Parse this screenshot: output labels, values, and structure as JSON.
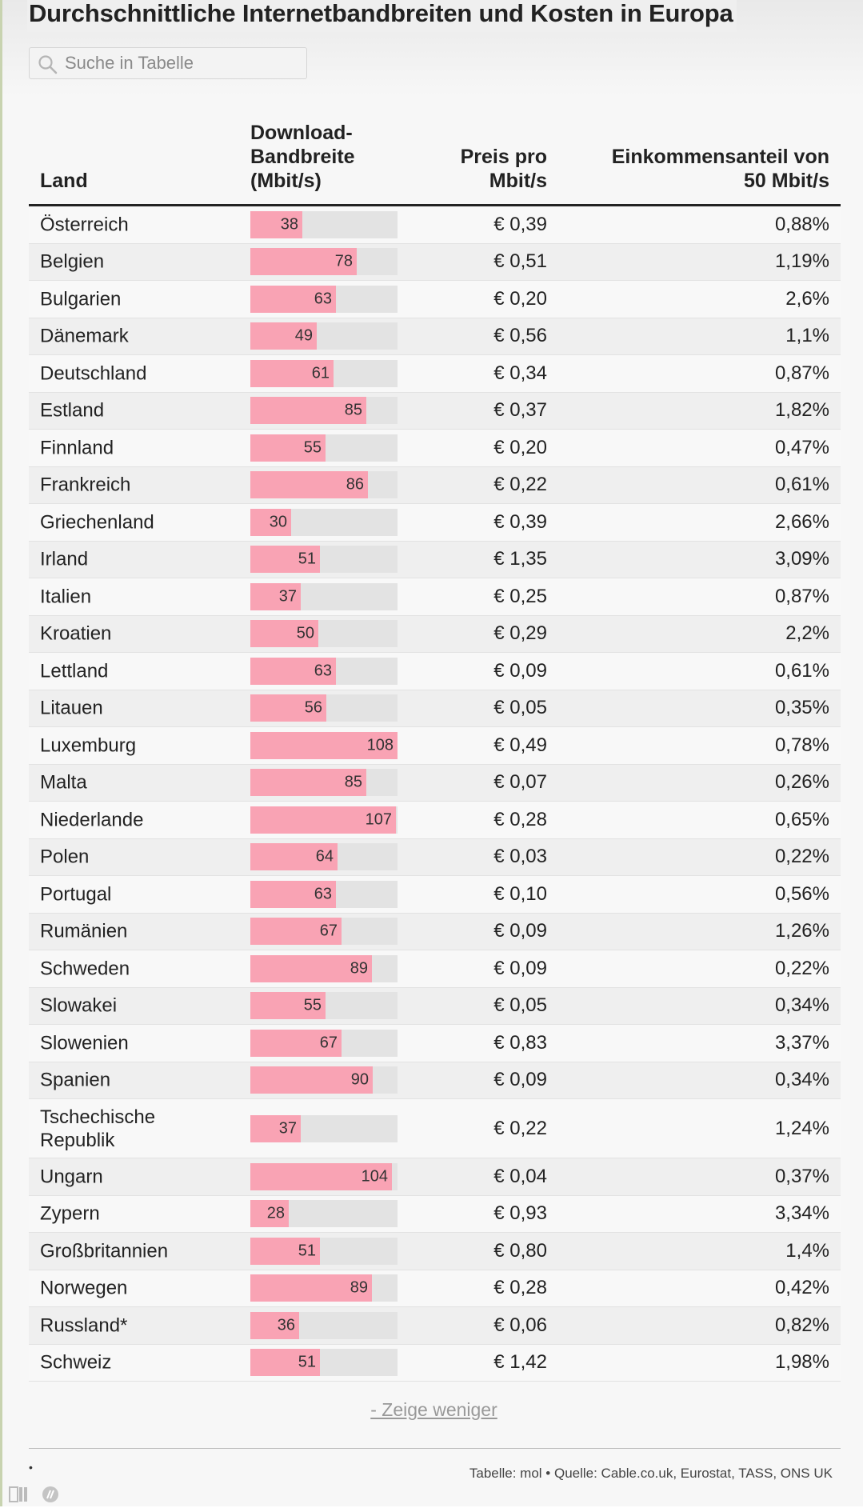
{
  "title": "Durchschnittliche Internetbandbreiten und Kosten in Europa",
  "search": {
    "placeholder": "Suche in Tabelle"
  },
  "headers": {
    "land": "Land",
    "bandwidth_l1": "Download-",
    "bandwidth_l2": "Bandbreite",
    "bandwidth_l3": "(Mbit/s)",
    "preis_l1": "Preis pro",
    "preis_l2": "Mbit/s",
    "eink_l1": "Einkommensanteil von",
    "eink_l2": "50 Mbit/s"
  },
  "bar_max": 108,
  "colors": {
    "bar_fill": "#f9a3b4",
    "bar_track": "#e3e3e3"
  },
  "rows": [
    {
      "land": "Österreich",
      "bw": 38,
      "preis": "€ 0,39",
      "eink": "0,88%"
    },
    {
      "land": "Belgien",
      "bw": 78,
      "preis": "€ 0,51",
      "eink": "1,19%"
    },
    {
      "land": "Bulgarien",
      "bw": 63,
      "preis": "€ 0,20",
      "eink": "2,6%"
    },
    {
      "land": "Dänemark",
      "bw": 49,
      "preis": "€ 0,56",
      "eink": "1,1%"
    },
    {
      "land": "Deutschland",
      "bw": 61,
      "preis": "€ 0,34",
      "eink": "0,87%"
    },
    {
      "land": "Estland",
      "bw": 85,
      "preis": "€ 0,37",
      "eink": "1,82%"
    },
    {
      "land": "Finnland",
      "bw": 55,
      "preis": "€ 0,20",
      "eink": "0,47%"
    },
    {
      "land": "Frankreich",
      "bw": 86,
      "preis": "€ 0,22",
      "eink": "0,61%"
    },
    {
      "land": "Griechenland",
      "bw": 30,
      "preis": "€ 0,39",
      "eink": "2,66%"
    },
    {
      "land": "Irland",
      "bw": 51,
      "preis": "€ 1,35",
      "eink": "3,09%"
    },
    {
      "land": "Italien",
      "bw": 37,
      "preis": "€ 0,25",
      "eink": "0,87%"
    },
    {
      "land": "Kroatien",
      "bw": 50,
      "preis": "€ 0,29",
      "eink": "2,2%"
    },
    {
      "land": "Lettland",
      "bw": 63,
      "preis": "€ 0,09",
      "eink": "0,61%"
    },
    {
      "land": "Litauen",
      "bw": 56,
      "preis": "€ 0,05",
      "eink": "0,35%"
    },
    {
      "land": "Luxemburg",
      "bw": 108,
      "preis": "€ 0,49",
      "eink": "0,78%"
    },
    {
      "land": "Malta",
      "bw": 85,
      "preis": "€ 0,07",
      "eink": "0,26%"
    },
    {
      "land": "Niederlande",
      "bw": 107,
      "preis": "€ 0,28",
      "eink": "0,65%"
    },
    {
      "land": "Polen",
      "bw": 64,
      "preis": "€ 0,03",
      "eink": "0,22%"
    },
    {
      "land": "Portugal",
      "bw": 63,
      "preis": "€ 0,10",
      "eink": "0,56%"
    },
    {
      "land": "Rumänien",
      "bw": 67,
      "preis": "€ 0,09",
      "eink": "1,26%"
    },
    {
      "land": "Schweden",
      "bw": 89,
      "preis": "€ 0,09",
      "eink": "0,22%"
    },
    {
      "land": "Slowakei",
      "bw": 55,
      "preis": "€ 0,05",
      "eink": "0,34%"
    },
    {
      "land": "Slowenien",
      "bw": 67,
      "preis": "€ 0,83",
      "eink": "3,37%"
    },
    {
      "land": "Spanien",
      "bw": 90,
      "preis": "€ 0,09",
      "eink": "0,34%"
    },
    {
      "land": "Tschechische Republik",
      "land_l1": "Tschechische",
      "land_l2": "Republik",
      "bw": 37,
      "preis": "€ 0,22",
      "eink": "1,24%"
    },
    {
      "land": "Ungarn",
      "bw": 104,
      "preis": "€ 0,04",
      "eink": "0,37%"
    },
    {
      "land": "Zypern",
      "bw": 28,
      "preis": "€ 0,93",
      "eink": "3,34%"
    },
    {
      "land": "Großbritannien",
      "bw": 51,
      "preis": "€ 0,80",
      "eink": "1,4%"
    },
    {
      "land": "Norwegen",
      "bw": 89,
      "preis": "€ 0,28",
      "eink": "0,42%"
    },
    {
      "land": "Russland*",
      "bw": 36,
      "preis": "€ 0,06",
      "eink": "0,82%"
    },
    {
      "land": "Schweiz",
      "bw": 51,
      "preis": "€ 1,42",
      "eink": "1,98%"
    }
  ],
  "toggle_label": "- Zeige weniger",
  "footer": {
    "dot": "•",
    "source": "Tabelle: mol • Quelle: Cable.co.uk, Eurostat, TASS, ONS UK"
  }
}
